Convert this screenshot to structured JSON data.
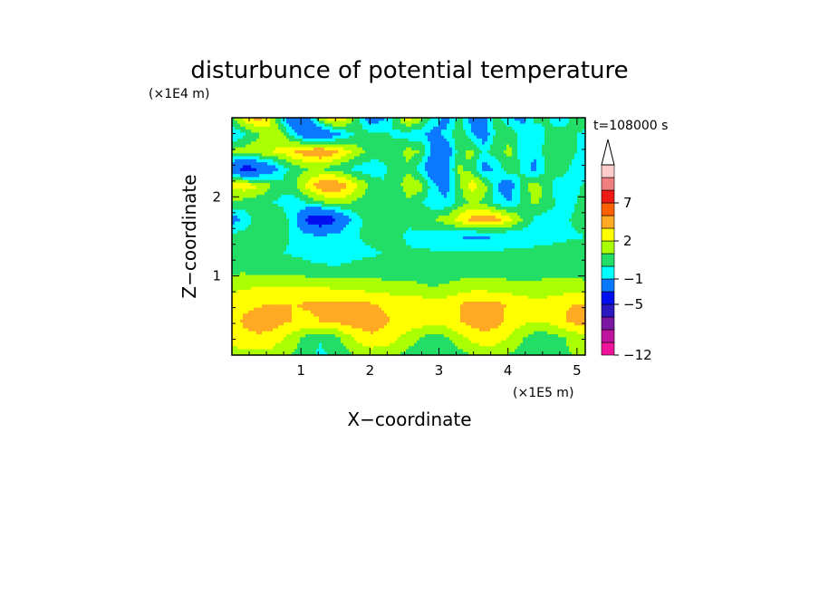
{
  "chart_data": {
    "type": "heatmap",
    "title": "disturbunce of potential temperature",
    "xlabel": "X−coordinate",
    "ylabel": "Z−coordinate",
    "x_scale_label": "(×1E5 m)",
    "y_scale_label": "(×1E4 m)",
    "time_label": "t=108000 s",
    "xlim": [
      0,
      5.12
    ],
    "ylim": [
      0,
      3.0
    ],
    "x_ticks": [
      1,
      2,
      3,
      4,
      5
    ],
    "y_ticks": [
      1,
      2
    ],
    "colorbar": {
      "levels": [
        -12,
        -11,
        -9,
        -7,
        -5,
        -3,
        -1,
        0,
        1,
        2,
        3,
        5,
        7,
        9,
        11,
        13
      ],
      "tick_labels": [
        "−12",
        "−5",
        "−1",
        "2",
        "7"
      ],
      "tick_values": [
        -12,
        -5,
        -1,
        2,
        7
      ],
      "colors": [
        "#f0149a",
        "#c0149e",
        "#7a18a4",
        "#2a18c0",
        "#0010f0",
        "#0a78ff",
        "#00ffff",
        "#22dd66",
        "#aaff00",
        "#ffff00",
        "#ffaa22",
        "#ff6000",
        "#ee1a14",
        "#f08080",
        "#ffcccc"
      ],
      "arrow_top": true
    },
    "grid": "29 x 15 representative samples of the perturbation field (x from 0 to 5.12, z from 0 to 3.0)",
    "values": [
      [
        1.5,
        1.7,
        1.7,
        1.6,
        1.2,
        0.8,
        0.2,
        -0.2,
        0.1,
        0.7,
        1.2,
        1.4,
        1.4,
        1.1,
        0.7,
        0.3,
        0.1,
        0.2,
        0.6,
        1.0,
        1.2,
        1.2,
        0.9,
        0.6,
        0.4,
        0.4,
        0.7,
        1.0,
        1.1
      ],
      [
        2.4,
        2.7,
        2.8,
        2.7,
        2.1,
        1.4,
        0.6,
        0.1,
        0.5,
        1.4,
        2.3,
        2.8,
        2.7,
        2.2,
        1.5,
        0.9,
        0.5,
        0.8,
        1.6,
        2.3,
        2.7,
        2.5,
        1.8,
        1.1,
        0.5,
        0.4,
        0.8,
        1.3,
        1.5
      ],
      [
        2.6,
        3.2,
        3.5,
        3.5,
        3.2,
        2.9,
        2.8,
        3.0,
        3.2,
        3.5,
        3.6,
        3.5,
        3.2,
        2.8,
        2.6,
        2.6,
        2.4,
        2.6,
        3.0,
        3.4,
        3.6,
        3.3,
        2.8,
        2.3,
        2.0,
        2.2,
        2.8,
        3.3,
        3.4
      ],
      [
        2.4,
        2.7,
        2.9,
        3.0,
        3.0,
        3.0,
        3.1,
        3.2,
        3.3,
        3.3,
        3.2,
        3.1,
        2.9,
        2.7,
        2.6,
        2.6,
        2.3,
        2.6,
        3.0,
        3.3,
        3.4,
        3.2,
        2.9,
        2.6,
        2.4,
        2.5,
        2.8,
        3.0,
        3.0
      ],
      [
        1.8,
        1.9,
        2.0,
        2.1,
        2.1,
        2.1,
        2.0,
        2.0,
        1.9,
        1.8,
        1.7,
        1.6,
        1.5,
        1.4,
        1.3,
        1.2,
        1.0,
        1.2,
        1.4,
        1.6,
        1.6,
        1.5,
        1.4,
        1.3,
        1.3,
        1.3,
        1.4,
        1.4,
        1.3
      ],
      [
        0.8,
        0.8,
        0.7,
        0.7,
        0.6,
        0.5,
        0.4,
        0.3,
        0.2,
        0.2,
        0.3,
        0.4,
        0.4,
        0.5,
        0.5,
        0.4,
        0.3,
        0.4,
        0.5,
        0.6,
        0.6,
        0.5,
        0.5,
        0.5,
        0.6,
        0.7,
        0.7,
        0.7,
        0.6
      ],
      [
        0.3,
        0.2,
        0.1,
        0.1,
        0.0,
        -0.1,
        -0.3,
        -0.5,
        -0.5,
        -0.3,
        -0.2,
        -0.1,
        0.0,
        0.1,
        0.1,
        0.1,
        0.1,
        0.1,
        0.2,
        0.2,
        0.2,
        0.2,
        0.3,
        0.3,
        0.4,
        0.4,
        0.4,
        0.4,
        0.3
      ],
      [
        0.4,
        0.4,
        0.6,
        0.5,
        0.2,
        -0.2,
        -0.6,
        -0.8,
        -0.6,
        -0.3,
        0.0,
        0.2,
        0.2,
        0.1,
        -0.1,
        -0.3,
        -0.4,
        -0.7,
        -1.0,
        -1.3,
        -1.2,
        -1.0,
        -0.9,
        -0.8,
        -0.6,
        -0.4,
        -0.2,
        -0.1,
        0.0
      ],
      [
        -1.7,
        -0.6,
        0.4,
        1.0,
        0.6,
        -0.8,
        -3.5,
        -4.6,
        -3.7,
        -1.6,
        -0.2,
        0.5,
        0.6,
        0.3,
        0.1,
        0.5,
        1.0,
        1.6,
        2.5,
        3.4,
        3.8,
        3.5,
        2.4,
        1.0,
        -0.2,
        -0.6,
        -0.3,
        0.1,
        0.3
      ],
      [
        0.9,
        0.6,
        0.3,
        0.1,
        -0.3,
        -0.5,
        0.1,
        0.8,
        1.3,
        1.2,
        0.7,
        0.3,
        0.1,
        0.2,
        0.7,
        0.1,
        -0.6,
        -0.8,
        0.4,
        1.2,
        0.8,
        -0.5,
        -1.0,
        0.3,
        1.2,
        0.7,
        -0.4,
        -0.2,
        0.5
      ],
      [
        2.3,
        2.6,
        2.2,
        1.2,
        0.3,
        0.8,
        2.4,
        3.8,
        4.2,
        3.4,
        2.0,
        0.8,
        0.1,
        0.4,
        1.8,
        1.4,
        -0.8,
        -1.5,
        0.8,
        2.6,
        1.5,
        -1.0,
        -1.8,
        0.5,
        1.6,
        0.4,
        -0.8,
        -0.4,
        0.2
      ],
      [
        -2.8,
        -3.8,
        -3.4,
        -2.0,
        -0.5,
        0.6,
        0.9,
        0.9,
        0.6,
        0.1,
        -0.4,
        -0.6,
        -0.2,
        0.4,
        0.8,
        -0.6,
        -2.6,
        -1.4,
        1.2,
        0.6,
        -1.6,
        -0.8,
        0.9,
        -0.2,
        -1.4,
        0.2,
        0.8,
        -0.3,
        -0.9
      ],
      [
        1.2,
        1.6,
        1.8,
        2.0,
        2.3,
        3.0,
        3.8,
        4.3,
        3.6,
        2.4,
        1.4,
        0.6,
        0.3,
        0.6,
        1.4,
        1.0,
        -1.6,
        -2.2,
        0.6,
        1.4,
        -0.4,
        0.8,
        1.2,
        -0.6,
        -0.8,
        0.6,
        1.0,
        0.2,
        -0.3
      ],
      [
        -0.8,
        -0.2,
        0.8,
        1.6,
        1.2,
        -0.6,
        -2.2,
        -2.6,
        -1.8,
        -0.6,
        0.2,
        0.4,
        0.2,
        -0.2,
        -0.6,
        -0.8,
        -1.6,
        -0.6,
        0.9,
        -0.8,
        -1.8,
        0.4,
        0.8,
        -0.6,
        -1.0,
        0.2,
        0.8,
        0.2,
        -0.3
      ],
      [
        0.6,
        2.6,
        3.6,
        2.4,
        -0.6,
        -3.2,
        -2.0,
        1.4,
        3.2,
        2.4,
        0.4,
        -2.0,
        -1.2,
        0.6,
        2.6,
        1.4,
        -0.4,
        -1.6,
        0.4,
        -1.6,
        -1.2,
        0.5,
        -0.8,
        -1.4,
        0.4,
        0.2,
        -1.0,
        0.4,
        0.8
      ]
    ]
  }
}
